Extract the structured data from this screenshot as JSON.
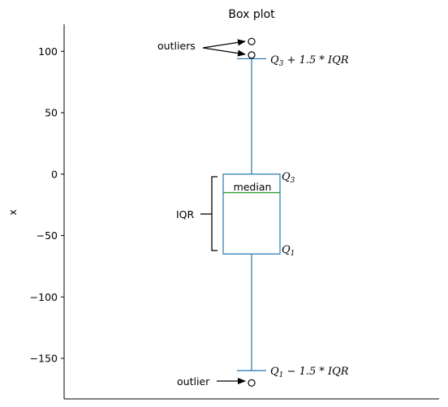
{
  "chart_data": {
    "type": "box",
    "title": "Box plot",
    "ylabel": "x",
    "ylim": [
      -183,
      122
    ],
    "yticks": [
      100,
      50,
      0,
      -50,
      -100,
      -150
    ],
    "ytick_labels": [
      "100",
      "50",
      "0",
      "−50",
      "−100",
      "−150"
    ],
    "box": {
      "q1": -65,
      "median": -15,
      "q3": 0,
      "whisker_low": -160,
      "whisker_high": 94,
      "outliers_high": [
        108,
        97
      ],
      "outliers_low": [
        -170
      ]
    },
    "annotations": {
      "outliers": "outliers",
      "outlier": "outlier",
      "iqr": "IQR",
      "median": "median",
      "q3": "Q",
      "q1": "Q",
      "q3_sub": "3",
      "q1_sub": "1",
      "upper_fence_suffix": " + 1.5 * IQR",
      "lower_fence_suffix": " − 1.5 * IQR"
    },
    "colors": {
      "box": "#1f77b4",
      "median": "#2ca02c",
      "axis": "#000000"
    }
  }
}
